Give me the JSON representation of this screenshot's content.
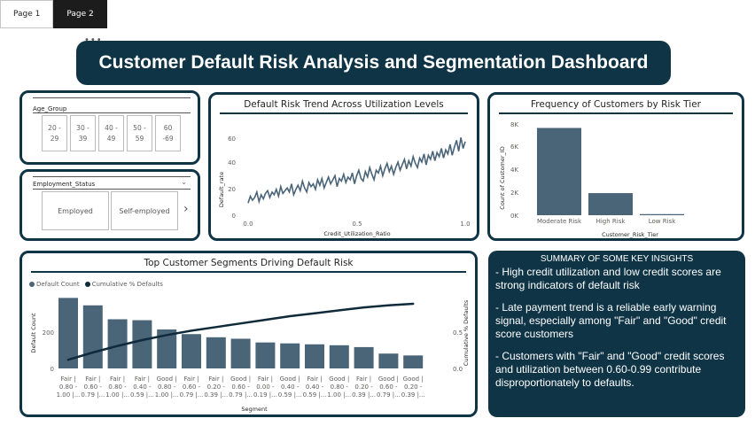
{
  "tabs": [
    {
      "label": "Page 1",
      "active": false
    },
    {
      "label": "Page 2",
      "active": true
    }
  ],
  "more_icon": "more-options-icon",
  "title": "Customer Default Risk Analysis and Segmentation Dashboard",
  "age_slicer": {
    "header": "Age_Group",
    "options": [
      [
        "20 -",
        "29"
      ],
      [
        "30 -",
        "39"
      ],
      [
        "40 -",
        "49"
      ],
      [
        "50 -",
        "59"
      ],
      [
        "60",
        "-69"
      ]
    ]
  },
  "employment_slicer": {
    "header": "Employment_Status",
    "options": [
      "Employed",
      "Self-employed"
    ],
    "next_icon": "chevron-right-icon",
    "dropdown_icon": "chevron-down-icon"
  },
  "trend_chart": {
    "title": "Default Risk Trend Across Utilization Levels",
    "xlabel": "Credit_Utilization_Ratio",
    "ylabel": "Default_rate",
    "x_ticks": [
      "0.0",
      "0.5",
      "1.0"
    ],
    "y_ticks": [
      "0",
      "20",
      "40",
      "60"
    ]
  },
  "tier_chart": {
    "title": "Frequency of Customers by Risk Tier",
    "xlabel": "Customer_Risk_Tier",
    "ylabel": "Count of Customer_ID",
    "y_ticks": [
      "0K",
      "2K",
      "4K",
      "6K",
      "8K"
    ]
  },
  "segment_chart": {
    "title": "Top Customer Segments Driving Default Risk",
    "legend": [
      "Default Count",
      "Cumulative % Defaults"
    ],
    "xlabel": "Segment",
    "ylabel": "Default Count",
    "y2label": "Cumulative % Defaults",
    "y_ticks": [
      "0",
      "200"
    ],
    "y2_ticks": [
      "0.0",
      "0.5"
    ]
  },
  "insights": {
    "title": "SUMMARY OF SOME KEY INSIGHTS",
    "items": [
      "- High credit utilization and low credit scores are strong indicators of default risk",
      "- Late payment trend is a reliable early warning signal, especially among \"Fair\" and \"Good\" credit score customers",
      "- Customers with \"Fair\" and \"Good\" credit scores and utilization between 0.60-0.99 contribute disproportionately to defaults."
    ]
  },
  "colors": {
    "navy": "#0f3446",
    "bar": "#4a6478",
    "line": "#0f2a3a"
  },
  "chart_data": [
    {
      "type": "line",
      "title": "Default Risk Trend Across Utilization Levels",
      "xlabel": "Credit_Utilization_Ratio",
      "ylabel": "Default_rate",
      "xlim": [
        0,
        1
      ],
      "ylim": [
        0,
        65
      ],
      "x_start": 0.0,
      "x_step": 0.01,
      "values": [
        9,
        14,
        11,
        13,
        17,
        10,
        15,
        12,
        16,
        18,
        13,
        17,
        15,
        19,
        14,
        21,
        16,
        18,
        20,
        17,
        23,
        15,
        19,
        22,
        18,
        25,
        20,
        17,
        24,
        21,
        23,
        19,
        26,
        22,
        27,
        20,
        24,
        28,
        23,
        26,
        29,
        21,
        27,
        25,
        30,
        24,
        28,
        26,
        31,
        23,
        29,
        33,
        27,
        25,
        32,
        28,
        35,
        30,
        26,
        33,
        31,
        36,
        29,
        34,
        38,
        32,
        36,
        30,
        35,
        39,
        33,
        37,
        41,
        34,
        40,
        36,
        43,
        38,
        35,
        42,
        39,
        45,
        37,
        44,
        41,
        47,
        40,
        46,
        43,
        49,
        42,
        48,
        45,
        52,
        44,
        50,
        55,
        47,
        57,
        49,
        54
      ]
    },
    {
      "type": "bar",
      "title": "Frequency of Customers by Risk Tier",
      "xlabel": "Customer_Risk_Tier",
      "ylabel": "Count of Customer_ID",
      "categories": [
        "Moderate Risk",
        "High Risk",
        "Low Risk"
      ],
      "values": [
        7900,
        2000,
        100
      ],
      "ylim": [
        0,
        8500
      ]
    },
    {
      "type": "bar",
      "title": "Top Customer Segments Driving Default Risk",
      "xlabel": "Segment",
      "ylabel": "Default Count",
      "categories": [
        [
          "Fair |",
          "0.80 -",
          "1.00 |..."
        ],
        [
          "Fair |",
          "0.60 -",
          "0.79 |..."
        ],
        [
          "Fair |",
          "0.80 -",
          "1.00 |..."
        ],
        [
          "Fair |",
          "0.40 -",
          "0.59 |..."
        ],
        [
          "Good |",
          "0.80 -",
          "1.00 |..."
        ],
        [
          "Fair |",
          "0.60 -",
          "0.79 |..."
        ],
        [
          "Fair |",
          "0.20 -",
          "0.39 |..."
        ],
        [
          "Good |",
          "0.60 -",
          "0.79 |..."
        ],
        [
          "Fair |",
          "0.00 -",
          "0.19 |..."
        ],
        [
          "Good |",
          "0.40 -",
          "0.59 |..."
        ],
        [
          "Fair |",
          "0.40 -",
          "0.59 |..."
        ],
        [
          "Good |",
          "0.80 -",
          "1.00 |..."
        ],
        [
          "Fair |",
          "0.20 -",
          "0.39 |..."
        ],
        [
          "Good |",
          "0.60 -",
          "0.79 |..."
        ],
        [
          "Good |",
          "0.20 -",
          "0.39 |..."
        ]
      ],
      "series": [
        {
          "name": "Default Count",
          "values": [
            380,
            340,
            265,
            260,
            210,
            185,
            168,
            160,
            140,
            135,
            130,
            125,
            115,
            80,
            70
          ]
        },
        {
          "name": "Cumulative % Defaults",
          "values": [
            0.12,
            0.22,
            0.31,
            0.39,
            0.46,
            0.52,
            0.57,
            0.62,
            0.67,
            0.72,
            0.76,
            0.8,
            0.84,
            0.87,
            0.89
          ]
        }
      ],
      "ylim": [
        0,
        420
      ],
      "y2lim": [
        0,
        1
      ]
    }
  ]
}
